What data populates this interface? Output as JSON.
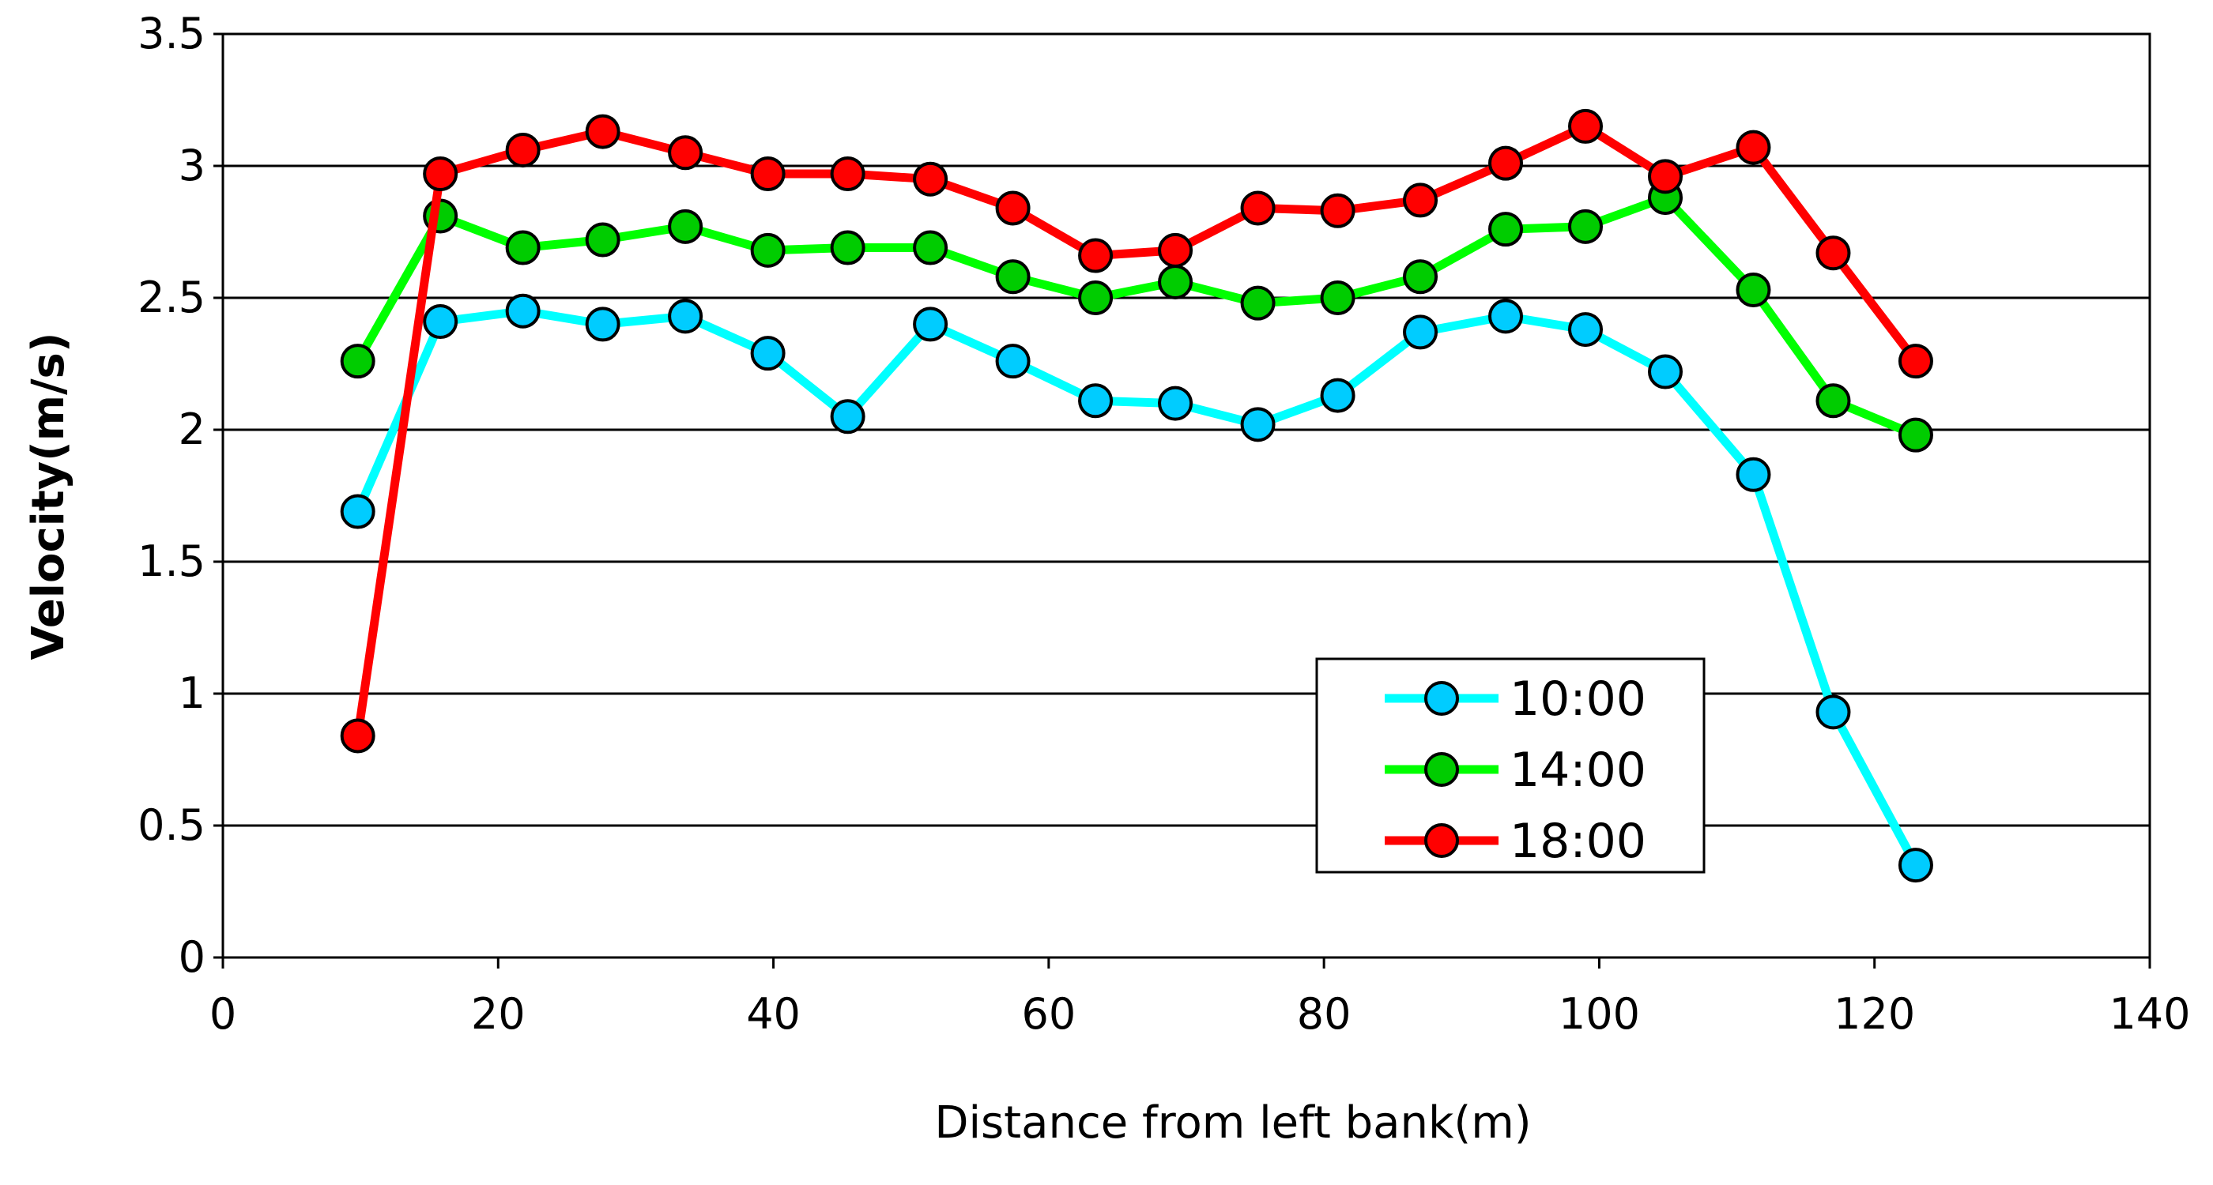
{
  "chart_data": {
    "type": "line",
    "title": "",
    "xlabel": "Distance from left bank(m)",
    "ylabel": "Velocity(m/s)",
    "xlim": [
      0,
      140
    ],
    "ylim": [
      0,
      3.5
    ],
    "x_ticks": [
      0,
      20,
      40,
      60,
      80,
      100,
      120,
      140
    ],
    "y_ticks": [
      0,
      0.5,
      1,
      1.5,
      2,
      2.5,
      3,
      3.5
    ],
    "y_tick_labels": [
      "0",
      "0.5",
      "1",
      "1.5",
      "2",
      "2.5",
      "3",
      "3.5"
    ],
    "grid": "horizontal",
    "legend_position": "lower-right",
    "x": [
      9.8,
      15.8,
      21.8,
      27.6,
      33.6,
      39.6,
      45.4,
      51.4,
      57.4,
      63.4,
      69.2,
      75.2,
      81.0,
      87.0,
      93.2,
      99.0,
      104.8,
      111.2,
      117.0,
      123.0
    ],
    "series": [
      {
        "name": "10:00",
        "color": "#00ffff",
        "marker_fill": "#00ccff",
        "values": [
          1.69,
          2.41,
          2.45,
          2.4,
          2.43,
          2.29,
          2.05,
          2.4,
          2.26,
          2.11,
          2.1,
          2.02,
          2.13,
          2.37,
          2.43,
          2.38,
          2.22,
          1.83,
          0.93,
          0.35
        ]
      },
      {
        "name": "14:00",
        "color": "#00ff00",
        "marker_fill": "#00cc00",
        "values": [
          2.26,
          2.81,
          2.69,
          2.72,
          2.77,
          2.68,
          2.69,
          2.69,
          2.58,
          2.5,
          2.56,
          2.48,
          2.5,
          2.58,
          2.76,
          2.77,
          2.88,
          2.53,
          2.11,
          1.98
        ]
      },
      {
        "name": "18:00",
        "color": "#ff0000",
        "marker_fill": "#ff0000",
        "values": [
          0.84,
          2.97,
          3.06,
          3.13,
          3.05,
          2.97,
          2.97,
          2.95,
          2.84,
          2.66,
          2.68,
          2.84,
          2.83,
          2.87,
          3.01,
          3.15,
          2.96,
          3.07,
          2.67,
          2.26
        ]
      }
    ]
  }
}
